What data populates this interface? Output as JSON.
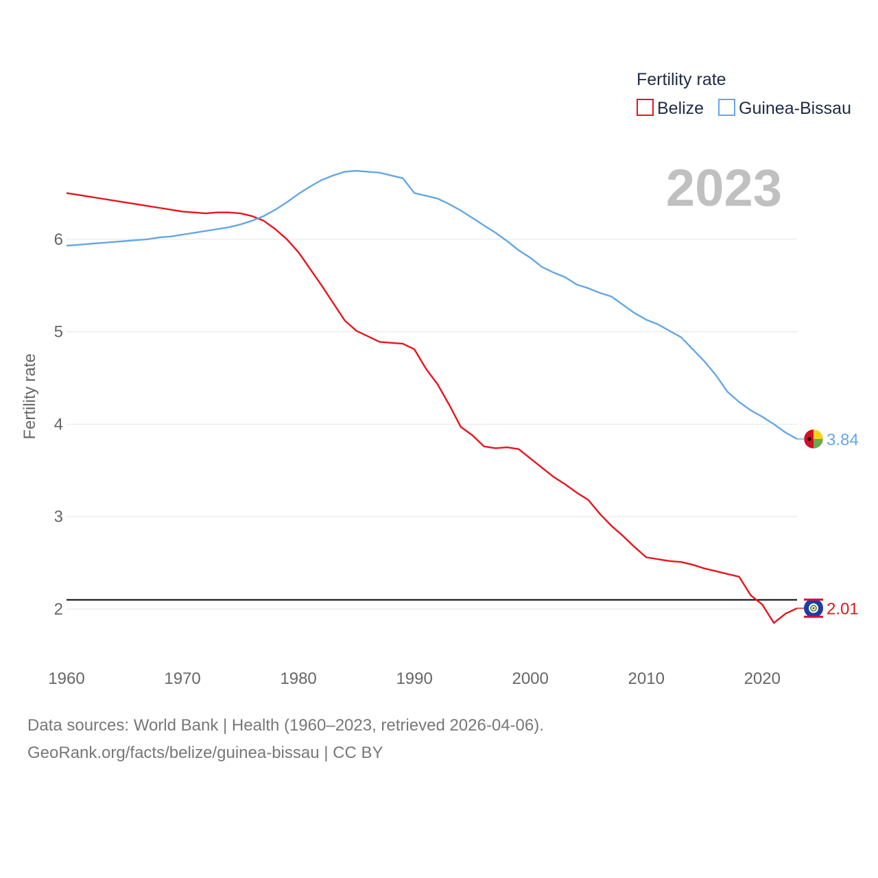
{
  "chart_data": {
    "type": "line",
    "title": "Fertility rate",
    "ylabel": "Fertility rate",
    "xlabel": "",
    "xlim": [
      1960,
      2023
    ],
    "ylim": [
      1.6,
      7.0
    ],
    "x_ticks": [
      1960,
      1970,
      1980,
      1990,
      2000,
      2010,
      2020
    ],
    "y_ticks": [
      2,
      3,
      4,
      5,
      6
    ],
    "reference_line": {
      "value": 2.1,
      "color": "#000000"
    },
    "year_label": "2023",
    "x": [
      1960,
      1961,
      1962,
      1963,
      1964,
      1965,
      1966,
      1967,
      1968,
      1969,
      1970,
      1971,
      1972,
      1973,
      1974,
      1975,
      1976,
      1977,
      1978,
      1979,
      1980,
      1981,
      1982,
      1983,
      1984,
      1985,
      1986,
      1987,
      1988,
      1989,
      1990,
      1991,
      1992,
      1993,
      1994,
      1995,
      1996,
      1997,
      1998,
      1999,
      2000,
      2001,
      2002,
      2003,
      2004,
      2005,
      2006,
      2007,
      2008,
      2009,
      2010,
      2011,
      2012,
      2013,
      2014,
      2015,
      2016,
      2017,
      2018,
      2019,
      2020,
      2021,
      2022,
      2023
    ],
    "series": [
      {
        "name": "Belize",
        "color": "#e8141c",
        "end_label": "2.01",
        "values": [
          6.5,
          6.48,
          6.46,
          6.44,
          6.42,
          6.4,
          6.38,
          6.36,
          6.34,
          6.32,
          6.3,
          6.29,
          6.28,
          6.29,
          6.29,
          6.28,
          6.25,
          6.2,
          6.11,
          6.0,
          5.86,
          5.68,
          5.5,
          5.31,
          5.12,
          5.01,
          4.95,
          4.89,
          4.88,
          4.87,
          4.81,
          4.6,
          4.43,
          4.21,
          3.97,
          3.88,
          3.76,
          3.74,
          3.75,
          3.73,
          3.63,
          3.53,
          3.43,
          3.35,
          3.26,
          3.18,
          3.03,
          2.9,
          2.79,
          2.67,
          2.56,
          2.54,
          2.52,
          2.51,
          2.48,
          2.44,
          2.41,
          2.38,
          2.35,
          2.15,
          2.05,
          1.85,
          1.95,
          2.01
        ]
      },
      {
        "name": "Guinea-Bissau",
        "color": "#63a7e5",
        "end_label": "3.84",
        "values": [
          5.93,
          5.94,
          5.95,
          5.96,
          5.97,
          5.98,
          5.99,
          6.0,
          6.02,
          6.03,
          6.05,
          6.07,
          6.09,
          6.11,
          6.13,
          6.16,
          6.2,
          6.25,
          6.32,
          6.4,
          6.49,
          6.57,
          6.64,
          6.69,
          6.73,
          6.74,
          6.73,
          6.72,
          6.69,
          6.66,
          6.5,
          6.47,
          6.44,
          6.38,
          6.31,
          6.23,
          6.15,
          6.07,
          5.98,
          5.88,
          5.8,
          5.7,
          5.64,
          5.59,
          5.51,
          5.47,
          5.42,
          5.38,
          5.29,
          5.2,
          5.13,
          5.08,
          5.01,
          4.94,
          4.81,
          4.68,
          4.53,
          4.35,
          4.24,
          4.15,
          4.08,
          4.0,
          3.91,
          3.84
        ]
      }
    ]
  },
  "footer": {
    "line1": "Data sources: World Bank | Health (1960–2023, retrieved 2026-04-06).",
    "line2": "GeoRank.org/facts/belize/guinea-bissau | CC BY"
  }
}
